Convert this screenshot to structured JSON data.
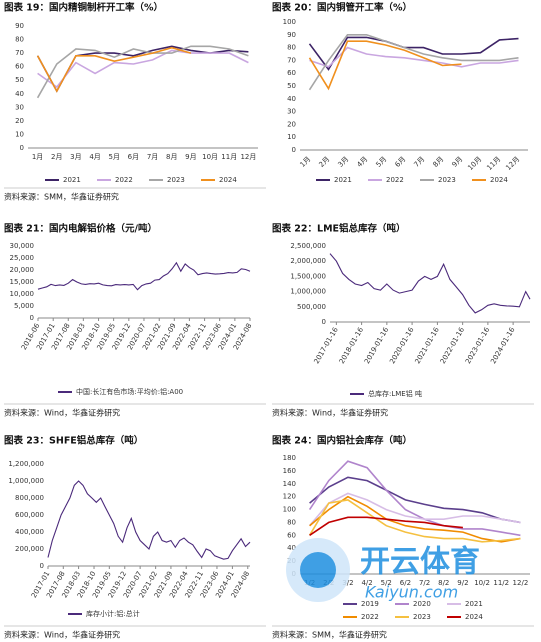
{
  "chart_data": [
    {
      "type": "line",
      "title": "图表 19：国内精铜制杆开工率（%）",
      "source": "资料来源：SMM，华鑫证券研究",
      "categories": [
        "1月",
        "2月",
        "3月",
        "4月",
        "5月",
        "6月",
        "7月",
        "8月",
        "9月",
        "10月",
        "11月",
        "12月"
      ],
      "ylim": [
        0,
        90
      ],
      "yticks": [
        0,
        10,
        20,
        30,
        40,
        50,
        60,
        70,
        80,
        90
      ],
      "grid": false,
      "legend": "bottom",
      "series": [
        {
          "name": "2021",
          "color": "#3d2466",
          "values": [
            68,
            42,
            68,
            70,
            70,
            68,
            72,
            75,
            72,
            70,
            72,
            71
          ]
        },
        {
          "name": "2022",
          "color": "#c9a6e0",
          "values": [
            55,
            45,
            63,
            55,
            63,
            62,
            65,
            72,
            70,
            70,
            70,
            63
          ]
        },
        {
          "name": "2023",
          "color": "#a6a6a6",
          "values": [
            37,
            62,
            73,
            72,
            67,
            73,
            70,
            70,
            75,
            75,
            73,
            68
          ]
        },
        {
          "name": "2024",
          "color": "#f0901e",
          "values": [
            68,
            42,
            68,
            68,
            64,
            67,
            70,
            74,
            70,
            null,
            null,
            null
          ]
        }
      ]
    },
    {
      "type": "line",
      "title": "图表 20：国内铜管开工率（%）",
      "source": "",
      "categories": [
        "1月",
        "2月",
        "3月",
        "4月",
        "5月",
        "6月",
        "7月",
        "8月",
        "9月",
        "10月",
        "11月",
        "12月"
      ],
      "ylim": [
        0,
        100
      ],
      "yticks": [
        0,
        10,
        20,
        30,
        40,
        50,
        60,
        70,
        80,
        90,
        100
      ],
      "grid": false,
      "legend": "bottom",
      "series": [
        {
          "name": "2021",
          "color": "#3d2466",
          "values": [
            83,
            63,
            88,
            88,
            85,
            80,
            80,
            75,
            75,
            76,
            86,
            87
          ]
        },
        {
          "name": "2022",
          "color": "#c9a6e0",
          "values": [
            70,
            65,
            80,
            75,
            73,
            72,
            70,
            68,
            65,
            68,
            68,
            70
          ]
        },
        {
          "name": "2023",
          "color": "#a6a6a6",
          "values": [
            47,
            70,
            90,
            90,
            85,
            80,
            75,
            72,
            70,
            70,
            70,
            72
          ]
        },
        {
          "name": "2024",
          "color": "#f0901e",
          "values": [
            72,
            48,
            85,
            85,
            82,
            78,
            72,
            66,
            67,
            null,
            null,
            null
          ]
        }
      ]
    },
    {
      "type": "line",
      "title": "图表 21：国内电解铝价格（元/吨）",
      "source": "资料来源：Wind，华鑫证券研究",
      "x": [
        "2016-06",
        "2016-08",
        "2016-10",
        "2016-12",
        "2017-02",
        "2017-04",
        "2017-06",
        "2017-08",
        "2017-10",
        "2017-12",
        "2018-02",
        "2018-04",
        "2018-06",
        "2018-08",
        "2018-10",
        "2018-12",
        "2019-02",
        "2019-04",
        "2019-06",
        "2019-08",
        "2019-10",
        "2019-12",
        "2020-02",
        "2020-04",
        "2020-06",
        "2020-08",
        "2020-10",
        "2020-12",
        "2021-02",
        "2021-04",
        "2021-06",
        "2021-08",
        "2021-10",
        "2021-12",
        "2022-02",
        "2022-04",
        "2022-06",
        "2022-08",
        "2022-10",
        "2022-12",
        "2023-02",
        "2023-04",
        "2023-06",
        "2023-08",
        "2023-10",
        "2023-12",
        "2024-02",
        "2024-04",
        "2024-06",
        "2024-08"
      ],
      "xticks": [
        "2016-06",
        "2017-01",
        "2017-08",
        "2018-03",
        "2018-10",
        "2019-05",
        "2019-12",
        "2020-07",
        "2021-02",
        "2021-09",
        "2022-04",
        "2022-11",
        "2023-06",
        "2024-01",
        "2024-08"
      ],
      "ylim": [
        0,
        30000
      ],
      "yticks": [
        0,
        {
          "value": 5000,
          "label": "5,000"
        },
        {
          "value": 10000,
          "label": "10,000"
        },
        {
          "value": 15000,
          "label": "15,000"
        },
        {
          "value": 20000,
          "label": "20,000"
        },
        {
          "value": 25000,
          "label": "25,000"
        },
        {
          "value": 30000,
          "label": "30,000"
        }
      ],
      "grid": false,
      "legend": "bottom",
      "series": [
        {
          "name": "中国:长江有色市场:平均价:铝:A00",
          "color": "#4b2a7b",
          "values": [
            12000,
            12500,
            13000,
            14000,
            13500,
            13800,
            13600,
            14500,
            16000,
            15000,
            14200,
            14000,
            14300,
            14200,
            14500,
            13800,
            13500,
            13400,
            13900,
            13800,
            13900,
            13800,
            14000,
            11800,
            13500,
            14200,
            14500,
            15800,
            16000,
            17500,
            18500,
            20500,
            23000,
            19500,
            22500,
            21000,
            20000,
            18000,
            18500,
            18800,
            18500,
            18300,
            18400,
            18600,
            18900,
            18800,
            19000,
            20500,
            20200,
            19500
          ]
        }
      ]
    },
    {
      "type": "line",
      "title": "图表 22：LME铝总库存（吨）",
      "source": "资料来源：Wind，华鑫证券研究",
      "x": [
        "2016-10-16",
        "2017-01-16",
        "2017-04-16",
        "2017-07-16",
        "2017-10-16",
        "2018-01-16",
        "2018-04-16",
        "2018-07-16",
        "2018-10-16",
        "2019-01-16",
        "2019-04-16",
        "2019-07-16",
        "2019-10-16",
        "2020-01-16",
        "2020-04-16",
        "2020-07-16",
        "2020-10-16",
        "2021-01-16",
        "2021-04-16",
        "2021-07-16",
        "2021-10-16",
        "2022-01-16",
        "2022-04-16",
        "2022-07-16",
        "2022-10-16",
        "2023-01-16",
        "2023-04-16",
        "2023-07-16",
        "2023-10-16",
        "2024-01-16",
        "2024-04-16",
        "2024-07-16",
        "2024-09-16"
      ],
      "xticks": [
        "2017-01-16",
        "2018-01-16",
        "2019-01-16",
        "2020-01-16",
        "2021-01-16",
        "2022-01-16",
        "2023-01-16",
        "2024-01-16"
      ],
      "ylim": [
        0,
        2500000
      ],
      "yticks": [
        0,
        {
          "value": 500000,
          "label": "500,000"
        },
        {
          "value": 1000000,
          "label": "1,000,000"
        },
        {
          "value": 1500000,
          "label": "1,500,000"
        },
        {
          "value": 2000000,
          "label": "2,000,000"
        },
        {
          "value": 2500000,
          "label": "2,500,000"
        }
      ],
      "grid": false,
      "legend": "bottom",
      "series": [
        {
          "name": "总库存:LME铝 吨",
          "color": "#4b2a7b",
          "values": [
            2250000,
            2000000,
            1600000,
            1400000,
            1250000,
            1200000,
            1300000,
            1100000,
            1050000,
            1250000,
            1050000,
            950000,
            1000000,
            1050000,
            1350000,
            1500000,
            1400000,
            1500000,
            1900000,
            1400000,
            1150000,
            900000,
            550000,
            300000,
            400000,
            550000,
            600000,
            550000,
            530000,
            520000,
            500000,
            1000000,
            750000
          ]
        }
      ]
    },
    {
      "type": "line",
      "title": "图表 23：SHFE铝总库存（吨）",
      "source": "资料来源：Wind，华鑫证券研究",
      "x": [
        "2017-01",
        "2017-03",
        "2017-05",
        "2017-07",
        "2017-09",
        "2017-11",
        "2018-01",
        "2018-03",
        "2018-05",
        "2018-07",
        "2018-09",
        "2018-11",
        "2019-01",
        "2019-03",
        "2019-05",
        "2019-07",
        "2019-09",
        "2019-11",
        "2020-01",
        "2020-03",
        "2020-05",
        "2020-07",
        "2020-09",
        "2020-11",
        "2021-01",
        "2021-03",
        "2021-05",
        "2021-07",
        "2021-09",
        "2021-11",
        "2022-01",
        "2022-03",
        "2022-05",
        "2022-07",
        "2022-09",
        "2022-11",
        "2023-01",
        "2023-03",
        "2023-05",
        "2023-07",
        "2023-09",
        "2023-11",
        "2024-01",
        "2024-03",
        "2024-05",
        "2024-07",
        "2024-09"
      ],
      "xticks": [
        "2017-01",
        "2017-08",
        "2018-03",
        "2018-10",
        "2019-05",
        "2019-12",
        "2020-07",
        "2021-02",
        "2021-09",
        "2022-04",
        "2022-11",
        "2023-06",
        "2024-01",
        "2024-08"
      ],
      "ylim": [
        0,
        1200000
      ],
      "yticks": [
        0,
        {
          "value": 200000,
          "label": "200,000"
        },
        {
          "value": 400000,
          "label": "400,000"
        },
        {
          "value": 600000,
          "label": "600,000"
        },
        {
          "value": 800000,
          "label": "800,000"
        },
        {
          "value": 1000000,
          "label": "1,000,000"
        },
        {
          "value": 1200000,
          "label": "1,200,000"
        }
      ],
      "grid": false,
      "legend": "bottom",
      "series": [
        {
          "name": "库存小计:铝:总计",
          "color": "#4b2a7b",
          "values": [
            100000,
            300000,
            450000,
            600000,
            700000,
            800000,
            950000,
            1000000,
            950000,
            850000,
            800000,
            750000,
            800000,
            700000,
            600000,
            500000,
            350000,
            280000,
            450000,
            560000,
            400000,
            300000,
            250000,
            200000,
            350000,
            400000,
            300000,
            280000,
            300000,
            220000,
            300000,
            330000,
            280000,
            250000,
            170000,
            100000,
            200000,
            180000,
            120000,
            100000,
            80000,
            90000,
            180000,
            250000,
            320000,
            230000,
            280000
          ]
        }
      ]
    },
    {
      "type": "line",
      "title": "图表 24：国内铝社会库存（吨）",
      "source": "资料来源：SMM，华鑫证券研究",
      "categories": [
        "1/2",
        "2/2",
        "3/2",
        "4/2",
        "5/2",
        "6/2",
        "7/2",
        "8/2",
        "9/2",
        "10/2",
        "11/2",
        "12/2"
      ],
      "ylim": [
        0,
        180
      ],
      "yticks": [
        0,
        20,
        40,
        60,
        80,
        100,
        120,
        140,
        160,
        180
      ],
      "grid": false,
      "legend": "bottom",
      "series": [
        {
          "name": "2019",
          "color": "#5b3f8c",
          "values": [
            110,
            135,
            150,
            145,
            130,
            115,
            108,
            102,
            100,
            95,
            85,
            80
          ]
        },
        {
          "name": "2020",
          "color": "#b084cc",
          "values": [
            100,
            145,
            175,
            165,
            130,
            100,
            85,
            75,
            70,
            70,
            65,
            60
          ]
        },
        {
          "name": "2021",
          "color": "#d7bde6",
          "values": [
            75,
            110,
            125,
            115,
            100,
            90,
            85,
            85,
            90,
            90,
            85,
            80
          ]
        },
        {
          "name": "2022",
          "color": "#f08c00",
          "values": [
            75,
            100,
            120,
            105,
            85,
            75,
            70,
            68,
            65,
            55,
            50,
            55
          ]
        },
        {
          "name": "2023",
          "color": "#f5c040",
          "values": [
            60,
            110,
            115,
            95,
            75,
            65,
            58,
            55,
            55,
            50,
            52,
            55
          ]
        },
        {
          "name": "2024",
          "color": "#c00000",
          "values": [
            60,
            80,
            88,
            88,
            85,
            82,
            80,
            75,
            72,
            null,
            null,
            null
          ]
        }
      ]
    }
  ],
  "watermark": {
    "brand": "开云体育",
    "site": "Kaiyun.com"
  }
}
